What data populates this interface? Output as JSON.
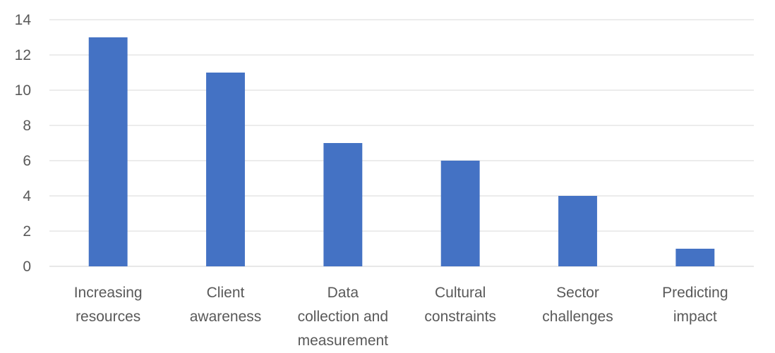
{
  "chart_data": {
    "type": "bar",
    "categories": [
      [
        "Increasing",
        "resources"
      ],
      [
        "Client",
        "awareness"
      ],
      [
        "Data",
        "collection and",
        "measurement"
      ],
      [
        "Cultural",
        "constraints"
      ],
      [
        "Sector",
        "challenges"
      ],
      [
        "Predicting",
        "impact"
      ]
    ],
    "values": [
      13,
      11,
      7,
      6,
      4,
      1
    ],
    "ylim": [
      0,
      14
    ],
    "yticks": [
      "0",
      "2",
      "4",
      "6",
      "8",
      "10",
      "12",
      "14"
    ],
    "title": "",
    "xlabel": "",
    "ylabel": "",
    "grid": true,
    "legend": "none",
    "bar_color": "#4472C4"
  }
}
